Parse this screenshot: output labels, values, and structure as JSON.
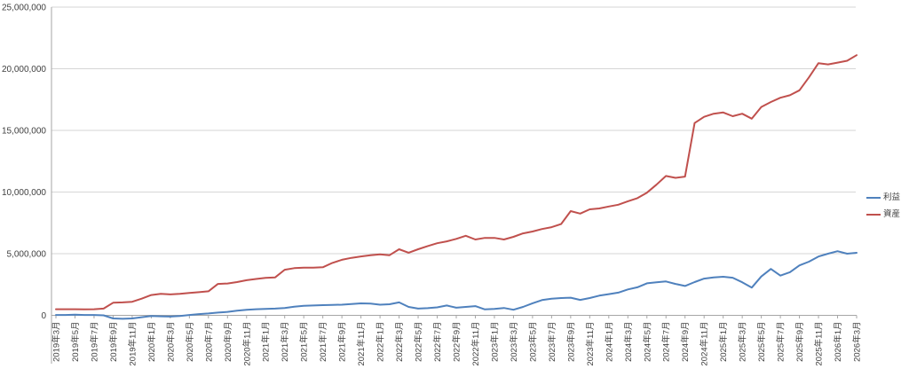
{
  "chart_data": {
    "type": "line",
    "title": "",
    "xlabel": "",
    "ylabel": "",
    "grid": true,
    "legend_position": "right",
    "y_axis": {
      "min": 0,
      "max": 25000000,
      "tick_values": [
        0,
        5000000,
        10000000,
        15000000,
        20000000,
        25000000
      ],
      "tick_labels": [
        "0",
        "5,000,000",
        "10,000,000",
        "15,000,000",
        "20,000,000",
        "25,000,000"
      ]
    },
    "x_axis": {
      "data_frequency": "monthly",
      "start": "2019年3月",
      "end": "2026年3月",
      "points_per_tick_label": 2,
      "tick_labels": [
        "2019年3月",
        "2019年5月",
        "2019年7月",
        "2019年9月",
        "2019年11月",
        "2020年1月",
        "2020年3月",
        "2020年5月",
        "2020年7月",
        "2020年9月",
        "2020年11月",
        "2021年1月",
        "2021年3月",
        "2021年5月",
        "2021年7月",
        "2021年9月",
        "2021年11月",
        "2022年1月",
        "2022年3月",
        "2022年5月",
        "2022年7月",
        "2022年9月",
        "2022年11月",
        "2023年1月",
        "2023年3月",
        "2023年5月",
        "2023年7月",
        "2023年9月",
        "2023年11月",
        "2024年1月",
        "2024年3月",
        "2024年5月",
        "2024年7月",
        "2024年9月",
        "2024年11月",
        "2025年1月",
        "2025年3月",
        "2025年5月",
        "2025年7月",
        "2025年9月",
        "2025年11月",
        "2026年1月",
        "2026年3月"
      ]
    },
    "series": [
      {
        "name": "利益",
        "color": "#4F81BD",
        "values": [
          30000,
          30000,
          50000,
          30000,
          30000,
          0,
          -250000,
          -280000,
          -250000,
          -150000,
          -50000,
          -80000,
          -100000,
          -50000,
          30000,
          100000,
          150000,
          220000,
          280000,
          380000,
          450000,
          500000,
          520000,
          550000,
          600000,
          700000,
          770000,
          800000,
          830000,
          850000,
          860000,
          920000,
          970000,
          950000,
          860000,
          900000,
          1050000,
          680000,
          550000,
          580000,
          650000,
          800000,
          620000,
          680000,
          750000,
          480000,
          520000,
          600000,
          450000,
          680000,
          980000,
          1240000,
          1350000,
          1400000,
          1430000,
          1250000,
          1400000,
          1600000,
          1720000,
          1840000,
          2100000,
          2270000,
          2600000,
          2680000,
          2750000,
          2550000,
          2380000,
          2700000,
          2980000,
          3080000,
          3130000,
          3050000,
          2680000,
          2250000,
          3150000,
          3760000,
          3220000,
          3500000,
          4050000,
          4350000,
          4770000,
          5000000,
          5200000,
          5000000,
          5070000
        ]
      },
      {
        "name": "資産",
        "color": "#C0504D",
        "values": [
          500000,
          500000,
          500000,
          480000,
          500000,
          550000,
          1020000,
          1050000,
          1100000,
          1350000,
          1650000,
          1750000,
          1700000,
          1750000,
          1820000,
          1880000,
          1950000,
          2550000,
          2580000,
          2700000,
          2850000,
          2950000,
          3040000,
          3080000,
          3700000,
          3830000,
          3870000,
          3870000,
          3900000,
          4250000,
          4500000,
          4660000,
          4780000,
          4870000,
          4950000,
          4880000,
          5360000,
          5080000,
          5360000,
          5620000,
          5850000,
          6000000,
          6200000,
          6450000,
          6150000,
          6280000,
          6280000,
          6150000,
          6370000,
          6650000,
          6800000,
          7000000,
          7150000,
          7400000,
          8450000,
          8250000,
          8600000,
          8670000,
          8830000,
          8970000,
          9250000,
          9500000,
          9950000,
          10600000,
          11300000,
          11150000,
          11250000,
          15600000,
          16100000,
          16350000,
          16450000,
          16150000,
          16350000,
          15950000,
          16900000,
          17300000,
          17650000,
          17850000,
          18250000,
          19300000,
          20450000,
          20350000,
          20500000,
          20650000,
          21100000
        ]
      }
    ],
    "legend": {
      "items": [
        "利益",
        "資産"
      ]
    },
    "colors": {
      "gridline": "#D6D6D6",
      "axis": "#A6A6A6",
      "tick_text": "#404040",
      "background": "#FFFFFF"
    }
  }
}
